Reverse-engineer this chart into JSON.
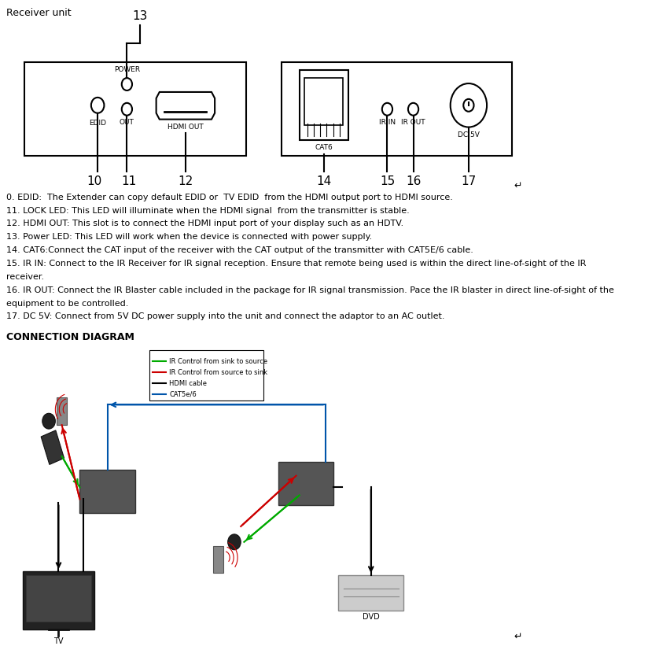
{
  "title": "Receiver unit",
  "bg_color": "#ffffff",
  "text_color": "#000000",
  "descriptions": [
    "0. EDID:  The Extender can copy default EDID or  TV EDID  from the HDMI output port to HDMI source.",
    "11. LOCK LED: This LED will illuminate when the HDMI signal  from the transmitter is stable.",
    "12. HDMI OUT: This slot is to connect the HDMI input port of your display such as an HDTV.",
    "13. Power LED: This LED will work when the device is connected with power supply.",
    "14. CAT6:Connect the CAT input of the receiver with the CAT output of the transmitter with CAT5E/6 cable.",
    "15. IR IN: Connect to the IR Receiver for IR signal reception. Ensure that remote being used is within the direct line-of-sight of the IR\nreceiver.",
    "16. IR OUT: Connect the IR Blaster cable included in the package for IR signal transmission. Pace the IR blaster in direct line-of-sight of the\nequipment to be controlled.",
    "17. DC 5V: Connect from 5V DC power supply into the unit and connect the adaptor to an AC outlet."
  ],
  "legend_items": [
    {
      "color": "#00aa00",
      "label": "IR Control from sink to source"
    },
    {
      "color": "#cc0000",
      "label": "IR Control from source to sink"
    },
    {
      "color": "#000000",
      "label": "HDMI cable"
    },
    {
      "color": "#0055aa",
      "label": "CAT5e/6"
    }
  ]
}
